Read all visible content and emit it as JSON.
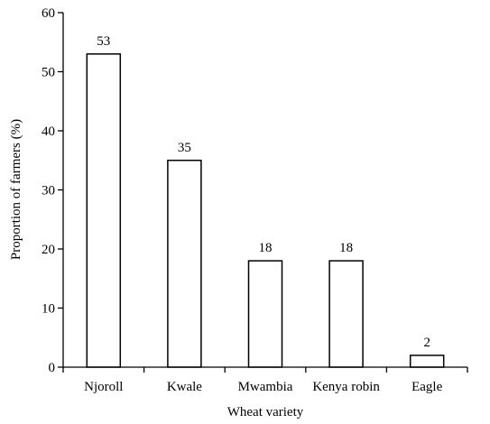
{
  "chart_data": {
    "type": "bar",
    "categories": [
      "Njoroll",
      "Kwale",
      "Mwambia",
      "Kenya robin",
      "Eagle"
    ],
    "values": [
      53,
      35,
      18,
      18,
      2
    ],
    "data_labels": [
      "53",
      "35",
      "18",
      "18",
      "2"
    ],
    "title": "",
    "xlabel": "Wheat variety",
    "ylabel": "Proportion of farmers (%)",
    "ylim": [
      0,
      60
    ],
    "yticks": [
      0,
      10,
      20,
      30,
      40,
      50,
      60
    ],
    "grid": false,
    "legend": "none",
    "bar_fill": "#ffffff",
    "bar_stroke": "#000000"
  }
}
